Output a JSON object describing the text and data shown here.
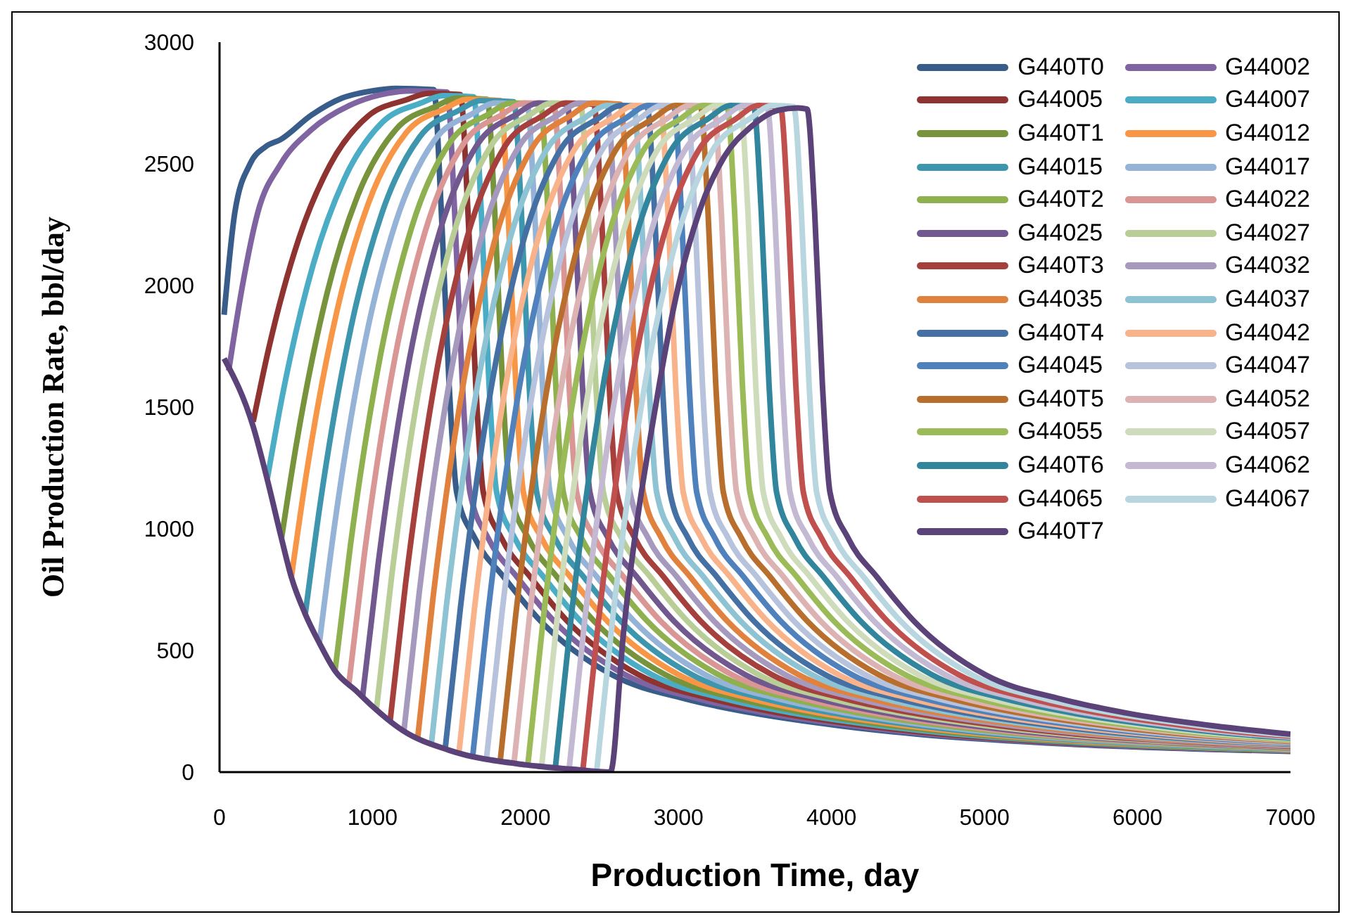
{
  "chart_data": {
    "type": "line",
    "xlabel": "Production Time, day",
    "ylabel": "Oil Production Rate, bbl/day",
    "xlim": [
      0,
      7000
    ],
    "xticks": [
      0,
      1000,
      2000,
      3000,
      4000,
      5000,
      6000,
      7000
    ],
    "ylim": [
      0,
      3000
    ],
    "yticks": [
      0,
      500,
      1000,
      1500,
      2000,
      2500,
      3000
    ],
    "legend": "top right",
    "series": [
      {
        "name": "G440T0",
        "color": "#385d8a",
        "x": [
          30,
          100,
          200,
          300,
          400,
          600,
          800,
          1000,
          1150,
          1400,
          1450,
          1500,
          1550,
          1670,
          1860,
          2100,
          2565,
          3050,
          3485,
          4060,
          4560,
          5400,
          6400,
          7000
        ],
        "values": [
          1880,
          2300,
          2500,
          2570,
          2600,
          2700,
          2770,
          2800,
          2810,
          2805,
          2300,
          1600,
          1150,
          960,
          800,
          620,
          400,
          300,
          243,
          190,
          156,
          120,
          95,
          85
        ]
      },
      {
        "name": "G44002",
        "color": "#8064a2",
        "x": [
          60,
          150,
          250,
          400,
          600,
          850,
          1100,
          1250,
          1487,
          1537,
          1587,
          1637,
          1757,
          1947,
          2187,
          2652,
          3137,
          3572,
          4147,
          4647,
          5487,
          6487,
          7000
        ],
        "values": [
          1650,
          2000,
          2300,
          2500,
          2640,
          2740,
          2790,
          2800,
          2795,
          2300,
          1600,
          1150,
          960,
          800,
          620,
          400,
          300,
          243,
          190,
          156,
          120,
          95,
          87
        ]
      },
      {
        "name": "G44005",
        "color": "#8e3330",
        "x": [
          220,
          320,
          520,
          720,
          970,
          1220,
          1370,
          1574,
          1624,
          1674,
          1724,
          1844,
          2034,
          2274,
          2739,
          3224,
          3659,
          4234,
          4734,
          5574,
          6574,
          7000
        ],
        "values": [
          1440,
          1737,
          2196,
          2493,
          2696,
          2763,
          2790,
          2785,
          2300,
          1600,
          1150,
          960,
          800,
          620,
          400,
          300,
          243,
          190,
          156,
          120,
          95,
          88
        ]
      },
      {
        "name": "G44007",
        "color": "#4bacc6",
        "x": [
          313,
          413,
          613,
          813,
          1063,
          1313,
          1463,
          1661,
          1711,
          1761,
          1811,
          1931,
          2121,
          2361,
          2826,
          3311,
          3746,
          4321,
          4821,
          5661,
          6661,
          7000
        ],
        "values": [
          1208,
          1554,
          2088,
          2434,
          2670,
          2749,
          2780,
          2775,
          2300,
          1600,
          1150,
          960,
          800,
          620,
          400,
          300,
          243,
          190,
          156,
          120,
          95,
          90
        ]
      },
      {
        "name": "G440T1",
        "color": "#77933c",
        "x": [
          405,
          505,
          705,
          905,
          1155,
          1405,
          1555,
          1749,
          1799,
          1849,
          1899,
          2019,
          2209,
          2449,
          2914,
          3399,
          3834,
          4409,
          4909,
          5749,
          6749,
          7000
        ],
        "values": [
          960,
          1358,
          1974,
          2372,
          2643,
          2734,
          2770,
          2765,
          2300,
          1600,
          1150,
          960,
          800,
          620,
          400,
          300,
          243,
          190,
          156,
          120,
          95,
          91
        ]
      },
      {
        "name": "G44012",
        "color": "#f79646",
        "x": [
          470,
          570,
          770,
          970,
          1220,
          1470,
          1620,
          1836,
          1886,
          1936,
          1986,
          2106,
          2296,
          2536,
          3001,
          3486,
          3921,
          4496,
          4996,
          5836,
          6836,
          7000
        ],
        "values": [
          803,
          1235,
          1902,
          2333,
          2628,
          2726,
          2765,
          2760,
          2300,
          1600,
          1150,
          960,
          800,
          620,
          400,
          300,
          243,
          190,
          156,
          120,
          95,
          92
        ]
      },
      {
        "name": "G44015",
        "color": "#3d96ae",
        "x": [
          560,
          660,
          860,
          1060,
          1310,
          1560,
          1710,
          1923,
          1973,
          2023,
          2073,
          2193,
          2383,
          2623,
          3088,
          3573,
          4008,
          4583,
          5083,
          5923,
          6923,
          7000
        ],
        "values": [
          647,
          1112,
          1830,
          2295,
          2612,
          2718,
          2760,
          2755,
          2300,
          1600,
          1150,
          960,
          800,
          620,
          400,
          300,
          243,
          190,
          156,
          120,
          95,
          94
        ]
      },
      {
        "name": "G44017",
        "color": "#95b3d7",
        "x": [
          653,
          753,
          953,
          1153,
          1403,
          1653,
          1803,
          2010,
          2060,
          2110,
          2160,
          2280,
          2470,
          2710,
          3175,
          3660,
          4095,
          4670,
          5170,
          6010,
          7000
        ],
        "values": [
          532,
          1020,
          1774,
          2262,
          2595,
          2706,
          2750,
          2745,
          2300,
          1600,
          1150,
          960,
          800,
          620,
          400,
          300,
          243,
          190,
          156,
          120,
          95
        ]
      },
      {
        "name": "G440T2",
        "color": "#8eb04e",
        "x": [
          755,
          855,
          1055,
          1255,
          1505,
          1755,
          1905,
          2097,
          2147,
          2197,
          2247,
          2367,
          2557,
          2797,
          3262,
          3747,
          4182,
          4757,
          5257,
          6097,
          7000
        ],
        "values": [
          416,
          929,
          1723,
          2237,
          2587,
          2703,
          2750,
          2745,
          2300,
          1600,
          1150,
          960,
          800,
          620,
          400,
          300,
          243,
          190,
          156,
          120,
          97
        ]
      },
      {
        "name": "G44022",
        "color": "#d99694",
        "x": [
          845,
          945,
          1145,
          1345,
          1595,
          1845,
          1995,
          2184,
          2234,
          2284,
          2334,
          2454,
          2644,
          2884,
          3349,
          3834,
          4269,
          4844,
          5344,
          6184,
          7000
        ],
        "values": [
          360,
          886,
          1698,
          2224,
          2583,
          2702,
          2750,
          2745,
          2300,
          1600,
          1150,
          960,
          800,
          620,
          400,
          300,
          243,
          190,
          156,
          120,
          100
        ]
      },
      {
        "name": "G44025",
        "color": "#71588f",
        "x": [
          935,
          1035,
          1235,
          1435,
          1685,
          1935,
          2085,
          2271,
          2321,
          2371,
          2421,
          2541,
          2731,
          2971,
          3436,
          3921,
          4356,
          4931,
          5431,
          6271,
          7000
        ],
        "values": [
          310,
          847,
          1676,
          2213,
          2579,
          2701,
          2750,
          2745,
          2300,
          1600,
          1150,
          960,
          800,
          620,
          400,
          300,
          243,
          190,
          156,
          120,
          102
        ]
      },
      {
        "name": "G44027",
        "color": "#b9cd96",
        "x": [
          1025,
          1125,
          1325,
          1525,
          1775,
          2025,
          2175,
          2359,
          2409,
          2459,
          2509,
          2629,
          2819,
          3059,
          3524,
          4009,
          4444,
          5019,
          5519,
          6359,
          7000
        ],
        "values": [
          255,
          804,
          1652,
          2201,
          2575,
          2700,
          2750,
          2745,
          2300,
          1600,
          1150,
          960,
          800,
          620,
          400,
          300,
          243,
          190,
          156,
          120,
          104
        ]
      },
      {
        "name": "G440T3",
        "color": "#a5403d",
        "x": [
          1115,
          1215,
          1415,
          1615,
          1865,
          2115,
          2265,
          2446,
          2496,
          2546,
          2596,
          2716,
          2906,
          3146,
          3611,
          4096,
          4531,
          5106,
          5606,
          6446,
          7000
        ],
        "values": [
          210,
          769,
          1632,
          2191,
          2572,
          2699,
          2750,
          2745,
          2300,
          1600,
          1150,
          960,
          800,
          620,
          400,
          300,
          243,
          190,
          156,
          120,
          106
        ]
      },
      {
        "name": "G44032",
        "color": "#a599bd",
        "x": [
          1205,
          1305,
          1505,
          1705,
          1955,
          2205,
          2355,
          2533,
          2583,
          2633,
          2683,
          2803,
          2993,
          3233,
          3698,
          4183,
          4618,
          5193,
          5693,
          6533,
          7000
        ],
        "values": [
          168,
          736,
          1614,
          2182,
          2569,
          2698,
          2750,
          2745,
          2300,
          1600,
          1150,
          960,
          800,
          620,
          400,
          300,
          243,
          190,
          156,
          120,
          109
        ]
      },
      {
        "name": "G44035",
        "color": "#e0823d",
        "x": [
          1295,
          1395,
          1595,
          1795,
          2045,
          2295,
          2445,
          2620,
          2670,
          2720,
          2770,
          2890,
          3080,
          3320,
          3785,
          4270,
          4705,
          5280,
          5780,
          6620,
          7000
        ],
        "values": [
          140,
          714,
          1602,
          2176,
          2567,
          2698,
          2750,
          2745,
          2300,
          1600,
          1150,
          960,
          800,
          620,
          400,
          300,
          243,
          190,
          156,
          120,
          111
        ]
      },
      {
        "name": "G44037",
        "color": "#8ec3d3",
        "x": [
          1385,
          1485,
          1685,
          1885,
          2135,
          2385,
          2535,
          2707,
          2757,
          2807,
          2857,
          2977,
          3167,
          3407,
          3872,
          4357,
          4792,
          5367,
          5867,
          6707,
          7000
        ],
        "values": [
          118,
          695,
          1586,
          2163,
          2556,
          2688,
          2740,
          2735,
          2300,
          1600,
          1150,
          960,
          800,
          620,
          400,
          300,
          243,
          190,
          156,
          120,
          113
        ]
      },
      {
        "name": "G440T4",
        "color": "#4470a4",
        "x": [
          1475,
          1575,
          1775,
          1975,
          2225,
          2475,
          2625,
          2794,
          2844,
          2894,
          2944,
          3064,
          3254,
          3494,
          3959,
          4444,
          4879,
          5454,
          5954,
          6794,
          7000
        ],
        "values": [
          96,
          678,
          1577,
          2158,
          2555,
          2687,
          2740,
          2735,
          2300,
          1600,
          1150,
          960,
          800,
          620,
          400,
          300,
          243,
          190,
          156,
          120,
          115
        ]
      },
      {
        "name": "G44042",
        "color": "#f9b38a",
        "x": [
          1565,
          1665,
          1865,
          2065,
          2315,
          2565,
          2715,
          2881,
          2931,
          2981,
          3031,
          3151,
          3341,
          3581,
          4046,
          4531,
          4966,
          5541,
          6041,
          6881,
          7000
        ],
        "values": [
          80,
          665,
          1570,
          2155,
          2554,
          2687,
          2740,
          2735,
          2300,
          1600,
          1150,
          960,
          800,
          620,
          400,
          300,
          243,
          190,
          156,
          120,
          117
        ]
      },
      {
        "name": "G44045",
        "color": "#4f81bd",
        "x": [
          1655,
          1755,
          1955,
          2155,
          2405,
          2655,
          2805,
          2969,
          3019,
          3069,
          3119,
          3239,
          3429,
          3669,
          4134,
          4619,
          5054,
          5629,
          6129,
          6969,
          7000
        ],
        "values": [
          67,
          655,
          1564,
          2152,
          2553,
          2687,
          2740,
          2735,
          2300,
          1600,
          1150,
          960,
          800,
          620,
          400,
          300,
          243,
          190,
          156,
          120,
          119
        ]
      },
      {
        "name": "G44047",
        "color": "#b7c3dc",
        "x": [
          1745,
          1845,
          2045,
          2245,
          2495,
          2745,
          2895,
          3056,
          3106,
          3156,
          3206,
          3326,
          3516,
          3756,
          4221,
          4706,
          5141,
          5716,
          6216,
          7000
        ],
        "values": [
          57,
          647,
          1559,
          2150,
          2552,
          2686,
          2740,
          2735,
          2300,
          1600,
          1150,
          960,
          800,
          620,
          400,
          300,
          243,
          190,
          156,
          122
        ]
      },
      {
        "name": "G440T5",
        "color": "#b86f2e",
        "x": [
          1835,
          1935,
          2135,
          2335,
          2585,
          2835,
          2985,
          3143,
          3193,
          3243,
          3293,
          3413,
          3603,
          3843,
          4308,
          4793,
          5228,
          5803,
          6303,
          7000
        ],
        "values": [
          48,
          640,
          1556,
          2148,
          2552,
          2686,
          2740,
          2735,
          2300,
          1600,
          1150,
          960,
          800,
          620,
          400,
          300,
          243,
          190,
          156,
          126
        ]
      },
      {
        "name": "G44052",
        "color": "#dcb3b2",
        "x": [
          1925,
          2025,
          2225,
          2425,
          2675,
          2925,
          3075,
          3230,
          3280,
          3330,
          3380,
          3500,
          3690,
          3930,
          4395,
          4880,
          5315,
          5890,
          6390,
          7000
        ],
        "values": [
          39,
          633,
          1552,
          2146,
          2551,
          2686,
          2740,
          2735,
          2300,
          1600,
          1150,
          960,
          800,
          620,
          400,
          300,
          243,
          190,
          156,
          129
        ]
      },
      {
        "name": "G44055",
        "color": "#9bbb59",
        "x": [
          2015,
          2115,
          2315,
          2515,
          2765,
          3015,
          3165,
          3317,
          3367,
          3417,
          3467,
          3587,
          3777,
          4017,
          4482,
          4967,
          5402,
          5977,
          6477,
          7000
        ],
        "values": [
          29,
          625,
          1547,
          2144,
          2550,
          2686,
          2740,
          2735,
          2300,
          1600,
          1150,
          960,
          800,
          620,
          400,
          300,
          243,
          190,
          156,
          133
        ]
      },
      {
        "name": "G44057",
        "color": "#cfdcbb",
        "x": [
          2105,
          2205,
          2405,
          2605,
          2855,
          3105,
          3255,
          3404,
          3454,
          3504,
          3554,
          3674,
          3864,
          4104,
          4569,
          5054,
          5489,
          6064,
          6564,
          7000
        ],
        "values": [
          23,
          621,
          1545,
          2142,
          2550,
          2686,
          2740,
          2735,
          2300,
          1600,
          1150,
          960,
          800,
          620,
          400,
          300,
          243,
          190,
          156,
          137
        ]
      },
      {
        "name": "G440T6",
        "color": "#31859c",
        "x": [
          2195,
          2295,
          2495,
          2695,
          2945,
          3195,
          3345,
          3491,
          3541,
          3591,
          3641,
          3761,
          3951,
          4191,
          4656,
          5141,
          5576,
          6151,
          6651,
          7000
        ],
        "values": [
          18,
          617,
          1542,
          2141,
          2549,
          2686,
          2740,
          2735,
          2300,
          1600,
          1150,
          960,
          800,
          620,
          400,
          300,
          243,
          190,
          156,
          140
        ]
      },
      {
        "name": "G44062",
        "color": "#c3b9d3",
        "x": [
          2285,
          2385,
          2585,
          2785,
          3035,
          3285,
          3435,
          3579,
          3629,
          3679,
          3729,
          3849,
          4039,
          4279,
          4744,
          5229,
          5664,
          6239,
          6739,
          7000
        ],
        "values": [
          13,
          613,
          1540,
          2140,
          2549,
          2685,
          2740,
          2735,
          2300,
          1600,
          1150,
          960,
          800,
          620,
          400,
          300,
          243,
          190,
          156,
          144
        ]
      },
      {
        "name": "G44065",
        "color": "#c0504d",
        "x": [
          2375,
          2475,
          2675,
          2875,
          3125,
          3375,
          3525,
          3666,
          3716,
          3766,
          3816,
          3936,
          4126,
          4366,
          4831,
          5316,
          5751,
          6326,
          6826,
          7000
        ],
        "values": [
          9,
          610,
          1538,
          2139,
          2549,
          2685,
          2740,
          2735,
          2300,
          1600,
          1150,
          960,
          800,
          620,
          400,
          300,
          243,
          190,
          156,
          148
        ]
      },
      {
        "name": "G44067",
        "color": "#b7d6e0",
        "x": [
          2465,
          2565,
          2765,
          2965,
          3215,
          3465,
          3615,
          3753,
          3803,
          3853,
          3903,
          4023,
          4213,
          4453,
          4918,
          5403,
          5838,
          6413,
          6913,
          7000
        ],
        "values": [
          4,
          606,
          1536,
          2138,
          2548,
          2685,
          2740,
          2735,
          2300,
          1600,
          1150,
          960,
          800,
          620,
          400,
          300,
          243,
          190,
          156,
          152
        ]
      },
      {
        "name": "G440T7",
        "color": "#5b4379",
        "x": [
          30,
          220,
          313,
          405,
          470,
          560,
          653,
          755,
          900,
          1000,
          1200,
          1500,
          2000,
          2300,
          2555,
          2640,
          2860,
          3000,
          3137,
          3300,
          3470,
          3650,
          3780,
          3840,
          3890,
          3940,
          3990,
          4110,
          4300,
          4540,
          5005,
          5500,
          5925,
          6500,
          7000
        ],
        "values": [
          1700,
          1420,
          1200,
          960,
          800,
          650,
          530,
          416,
          330,
          270,
          170,
          90,
          30,
          12,
          0,
          570,
          1540,
          2000,
          2306,
          2530,
          2650,
          2720,
          2730,
          2725,
          2300,
          1600,
          1150,
          960,
          800,
          620,
          400,
          300,
          243,
          190,
          156
        ]
      }
    ]
  }
}
